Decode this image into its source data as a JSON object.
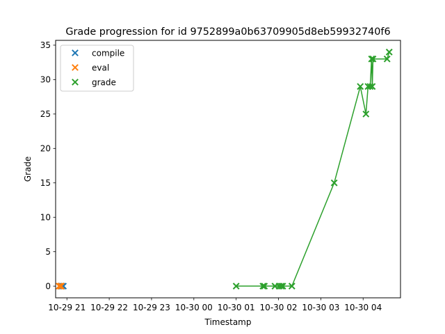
{
  "chart_data": {
    "type": "scatter",
    "title": "Grade progression for id 9752899a0b63709905d8eb59932740f6",
    "xlabel": "Timestamp",
    "ylabel": "Grade",
    "x_unit": "datetime",
    "xlim": [
      "2024-10-29T20:44:00",
      "2024-10-30T04:53:00"
    ],
    "ylim": [
      -1.7,
      35.7
    ],
    "x_ticks": [
      {
        "t": "2024-10-29T21:00:00",
        "label": "10-29 21"
      },
      {
        "t": "2024-10-29T22:00:00",
        "label": "10-29 22"
      },
      {
        "t": "2024-10-29T23:00:00",
        "label": "10-29 23"
      },
      {
        "t": "2024-10-30T00:00:00",
        "label": "10-30 00"
      },
      {
        "t": "2024-10-30T01:00:00",
        "label": "10-30 01"
      },
      {
        "t": "2024-10-30T02:00:00",
        "label": "10-30 02"
      },
      {
        "t": "2024-10-30T03:00:00",
        "label": "10-30 03"
      },
      {
        "t": "2024-10-30T04:00:00",
        "label": "10-30 04"
      }
    ],
    "y_ticks": [
      0,
      5,
      10,
      15,
      20,
      25,
      30,
      35
    ],
    "grid": false,
    "legend": {
      "position": "top-left",
      "entries": [
        "compile",
        "eval",
        "grade"
      ]
    },
    "series": [
      {
        "name": "compile",
        "color": "#1f77b4",
        "marker": "x",
        "line": false,
        "points": [
          {
            "t": "2024-10-29T20:51:00",
            "y": 0
          },
          {
            "t": "2024-10-29T20:53:00",
            "y": 0
          },
          {
            "t": "2024-10-29T20:55:00",
            "y": 0
          }
        ]
      },
      {
        "name": "eval",
        "color": "#ff7f0e",
        "marker": "x",
        "line": false,
        "points": [
          {
            "t": "2024-10-29T20:49:00",
            "y": 0
          },
          {
            "t": "2024-10-29T20:51:00",
            "y": 0
          },
          {
            "t": "2024-10-29T20:52:00",
            "y": 0
          }
        ]
      },
      {
        "name": "grade",
        "color": "#2ca02c",
        "marker": "x",
        "line": true,
        "points": [
          {
            "t": "2024-10-30T01:00:00",
            "y": 0
          },
          {
            "t": "2024-10-30T01:38:00",
            "y": 0
          },
          {
            "t": "2024-10-30T01:40:00",
            "y": 0
          },
          {
            "t": "2024-10-30T01:55:00",
            "y": 0
          },
          {
            "t": "2024-10-30T02:01:00",
            "y": 0
          },
          {
            "t": "2024-10-30T02:04:00",
            "y": 0
          },
          {
            "t": "2024-10-30T02:06:00",
            "y": 0
          },
          {
            "t": "2024-10-30T02:19:00",
            "y": 0
          },
          {
            "t": "2024-10-30T03:19:00",
            "y": 15
          },
          {
            "t": "2024-10-30T03:56:00",
            "y": 29
          },
          {
            "t": "2024-10-30T04:04:00",
            "y": 25
          },
          {
            "t": "2024-10-30T04:07:00",
            "y": 29
          },
          {
            "t": "2024-10-30T04:10:00",
            "y": 29
          },
          {
            "t": "2024-10-30T04:12:00",
            "y": 33
          },
          {
            "t": "2024-10-30T04:13:00",
            "y": 29
          },
          {
            "t": "2024-10-30T04:14:00",
            "y": 33
          },
          {
            "t": "2024-10-30T04:34:00",
            "y": 33
          },
          {
            "t": "2024-10-30T04:37:00",
            "y": 34
          }
        ]
      }
    ]
  }
}
